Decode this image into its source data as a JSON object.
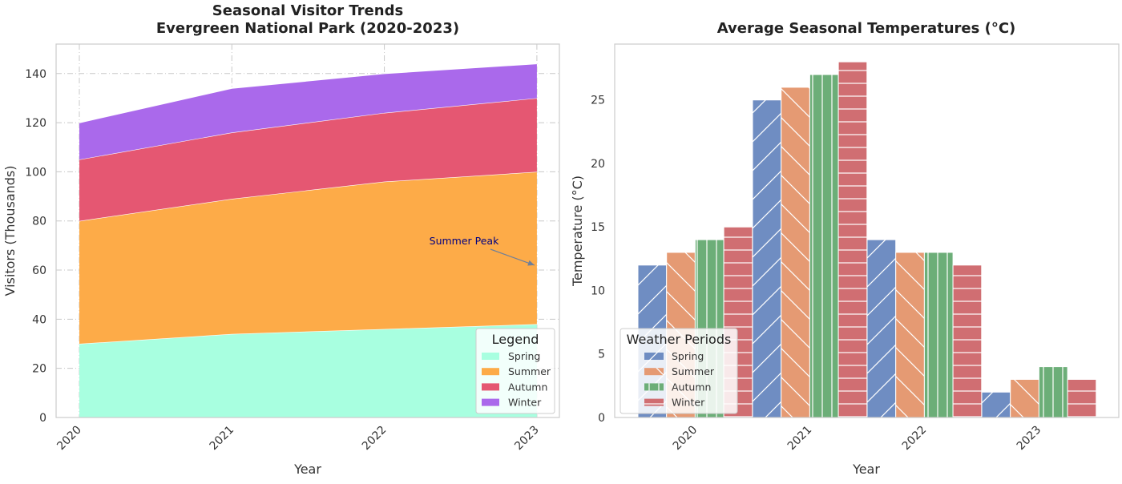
{
  "chart_data": [
    {
      "type": "area",
      "stacked": true,
      "title": "Seasonal Visitor Trends\nEvergreen National Park (2020-2023)",
      "xlabel": "Year",
      "ylabel": "Visitors (Thousands)",
      "x": [
        "2020",
        "2021",
        "2022",
        "2023"
      ],
      "ylim": [
        0,
        152
      ],
      "yticks": [
        0,
        20,
        40,
        60,
        80,
        100,
        120,
        140
      ],
      "grid": true,
      "legend": {
        "title": "Legend",
        "position": "lower-right"
      },
      "series": [
        {
          "name": "Spring",
          "color": "#a8ffe0",
          "values": [
            30,
            34,
            36,
            38
          ]
        },
        {
          "name": "Summer",
          "color": "#fdab48",
          "values": [
            50,
            55,
            60,
            62
          ]
        },
        {
          "name": "Autumn",
          "color": "#e55772",
          "values": [
            25,
            27,
            28,
            30
          ]
        },
        {
          "name": "Winter",
          "color": "#aa69eb",
          "values": [
            15,
            18,
            16,
            14
          ]
        }
      ],
      "annotations": [
        {
          "text": "Summer Peak",
          "x": "2023",
          "y": 62
        }
      ]
    },
    {
      "type": "bar",
      "title": "Average Seasonal Temperatures (°C)",
      "xlabel": "Year",
      "ylabel": "Temperature (°C)",
      "categories": [
        "2020",
        "2021",
        "2022",
        "2023"
      ],
      "ylim": [
        0,
        29.4
      ],
      "yticks": [
        0,
        5,
        10,
        15,
        20,
        25
      ],
      "grid": false,
      "legend": {
        "title": "Weather Periods",
        "position": "lower-left"
      },
      "series": [
        {
          "name": "Spring",
          "color": "#6f8dc2",
          "hatch": "diagonal",
          "values": [
            12,
            25,
            14,
            2
          ]
        },
        {
          "name": "Summer",
          "color": "#e59a73",
          "hatch": "backdiagonal",
          "values": [
            13,
            26,
            13,
            3
          ]
        },
        {
          "name": "Autumn",
          "color": "#6cae78",
          "hatch": "vertical",
          "values": [
            14,
            27,
            13,
            4
          ]
        },
        {
          "name": "Winter",
          "color": "#d06e72",
          "hatch": "horizontal",
          "values": [
            15,
            28,
            12,
            3
          ]
        }
      ]
    }
  ]
}
